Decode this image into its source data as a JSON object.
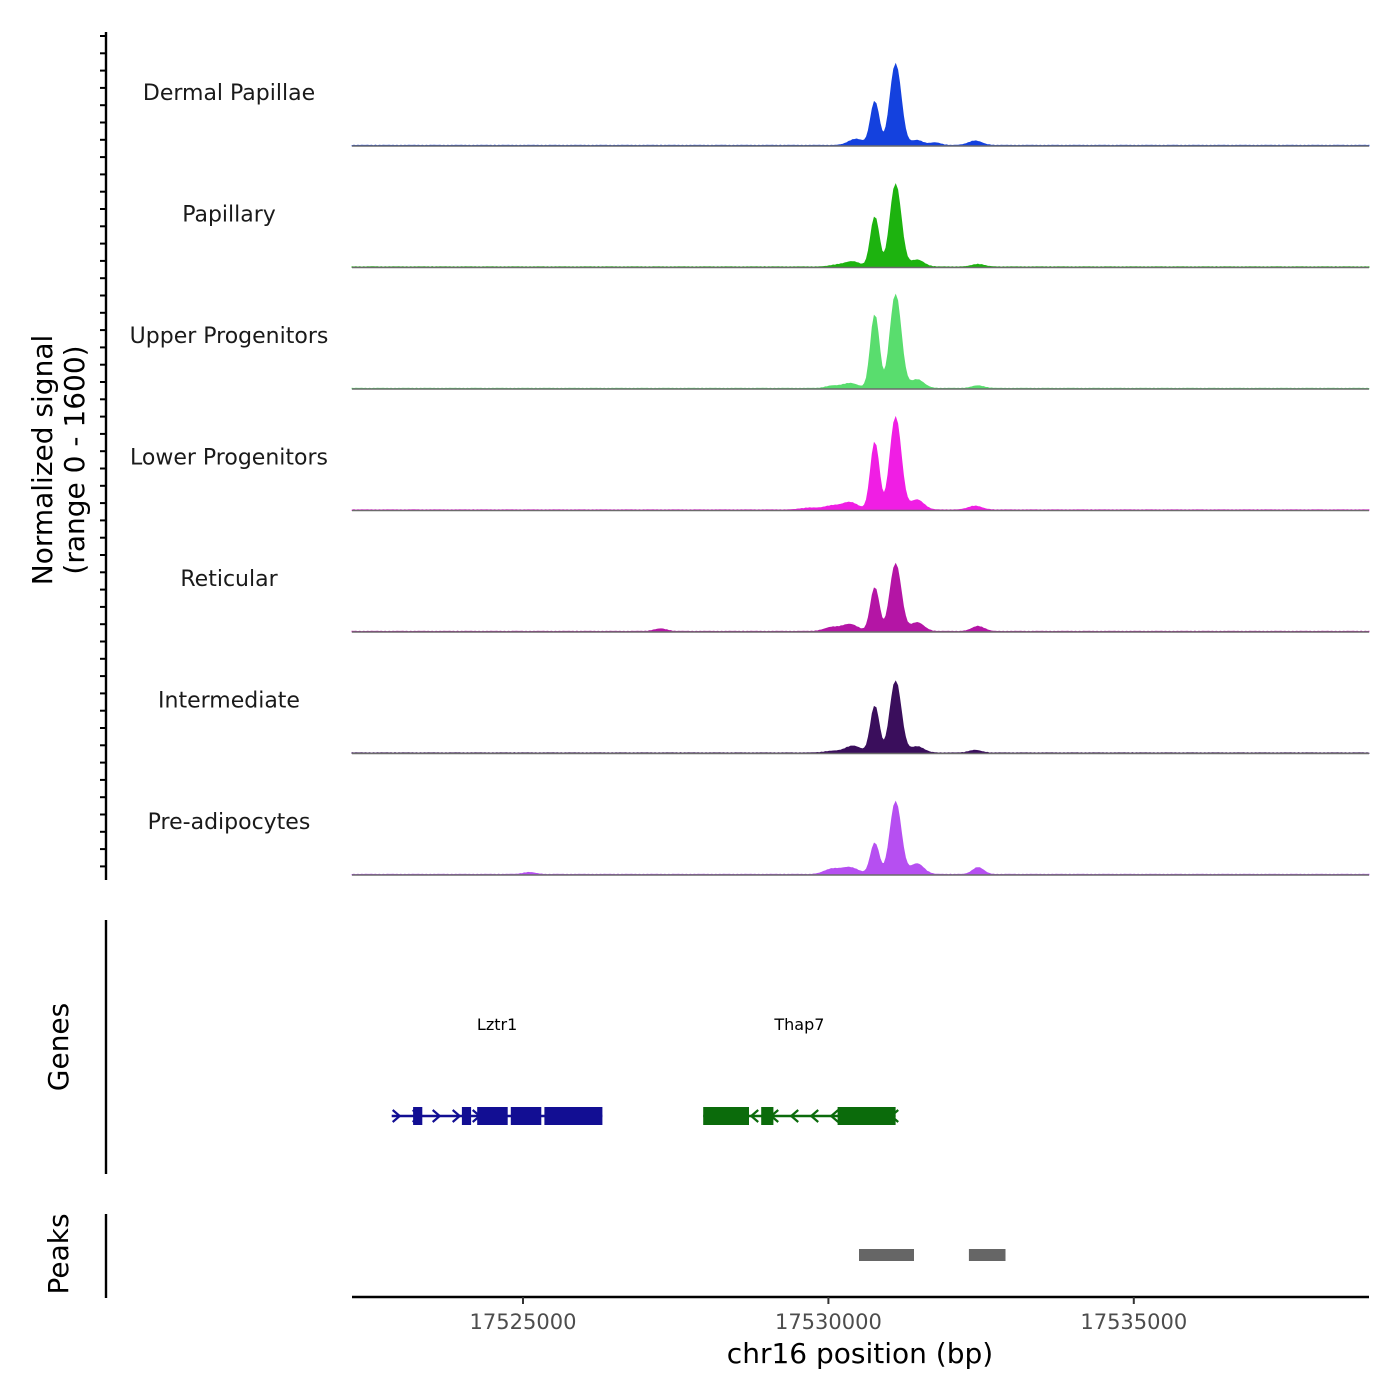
{
  "chart_data": {
    "type": "area",
    "title": "",
    "ylabel": "Normalized signal",
    "ylabel_range": "(range 0 - 1600)",
    "ylim": [
      0,
      1600
    ],
    "xlabel": "chr16 position (bp)",
    "xlim": [
      17522200,
      17538850
    ],
    "x_ticks": [
      17525000,
      17530000,
      17535000
    ],
    "x_tick_labels": [
      "17525000",
      "17530000",
      "17535000"
    ],
    "series": [
      {
        "name": "Dermal Papillae",
        "color": "#1441DE",
        "peaks": [
          [
            17530760,
            700,
            70
          ],
          [
            17531100,
            1300,
            90
          ],
          [
            17530450,
            100,
            120
          ],
          [
            17531450,
            80,
            100
          ],
          [
            17532400,
            70,
            110
          ],
          [
            17531750,
            40,
            90
          ]
        ]
      },
      {
        "name": "Papillary",
        "color": "#1DB30F",
        "peaks": [
          [
            17530760,
            800,
            70
          ],
          [
            17531100,
            1320,
            90
          ],
          [
            17530400,
            80,
            120
          ],
          [
            17531450,
            110,
            110
          ],
          [
            17532450,
            40,
            100
          ],
          [
            17530150,
            30,
            120
          ]
        ]
      },
      {
        "name": "Upper Progenitors",
        "color": "#59DD6E",
        "peaks": [
          [
            17530760,
            1180,
            70
          ],
          [
            17531100,
            1500,
            90
          ],
          [
            17530350,
            80,
            130
          ],
          [
            17531450,
            140,
            110
          ],
          [
            17532450,
            40,
            100
          ],
          [
            17530050,
            35,
            100
          ]
        ]
      },
      {
        "name": "Lower Progenitors",
        "color": "#F01EE4",
        "peaks": [
          [
            17530760,
            1080,
            70
          ],
          [
            17531100,
            1480,
            90
          ],
          [
            17530350,
            120,
            130
          ],
          [
            17531450,
            160,
            110
          ],
          [
            17532400,
            60,
            110
          ],
          [
            17530050,
            60,
            120
          ],
          [
            17529700,
            30,
            150
          ]
        ]
      },
      {
        "name": "Reticular",
        "color": "#B415A5",
        "peaks": [
          [
            17530760,
            700,
            70
          ],
          [
            17531100,
            1080,
            90
          ],
          [
            17530350,
            110,
            130
          ],
          [
            17531450,
            140,
            110
          ],
          [
            17532450,
            80,
            100
          ],
          [
            17527250,
            40,
            100
          ],
          [
            17530050,
            60,
            120
          ]
        ]
      },
      {
        "name": "Intermediate",
        "color": "#3A0E5C",
        "peaks": [
          [
            17530760,
            750,
            70
          ],
          [
            17531100,
            1150,
            90
          ],
          [
            17530400,
            110,
            130
          ],
          [
            17531450,
            100,
            110
          ],
          [
            17532400,
            40,
            100
          ],
          [
            17530050,
            25,
            120
          ]
        ]
      },
      {
        "name": "Pre-adipocytes",
        "color": "#B64FF1",
        "peaks": [
          [
            17530760,
            500,
            70
          ],
          [
            17531100,
            1160,
            90
          ],
          [
            17530350,
            110,
            140
          ],
          [
            17531450,
            170,
            110
          ],
          [
            17532450,
            110,
            90
          ],
          [
            17530050,
            80,
            120
          ],
          [
            17525100,
            30,
            100
          ]
        ]
      }
    ],
    "genes_track_label": "Genes",
    "genes": [
      {
        "name": "Lztr1",
        "strand": "+",
        "color": "#120E93",
        "start": 17522850,
        "end": 17526300,
        "exons": [
          [
            17523200,
            17523350
          ],
          [
            17524000,
            17524150
          ],
          [
            17524250,
            17524750
          ],
          [
            17524800,
            17525300
          ],
          [
            17525350,
            17526300
          ]
        ]
      },
      {
        "name": "Thap7",
        "strand": "-",
        "color": "#0B6B0B",
        "start": 17527950,
        "end": 17531100,
        "exons": [
          [
            17527950,
            17528700
          ],
          [
            17528900,
            17529100
          ],
          [
            17530150,
            17531100
          ]
        ]
      }
    ],
    "peaks_track_label": "Peaks",
    "peak_regions": [
      [
        17530500,
        17531400
      ],
      [
        17532300,
        17532900
      ]
    ]
  }
}
